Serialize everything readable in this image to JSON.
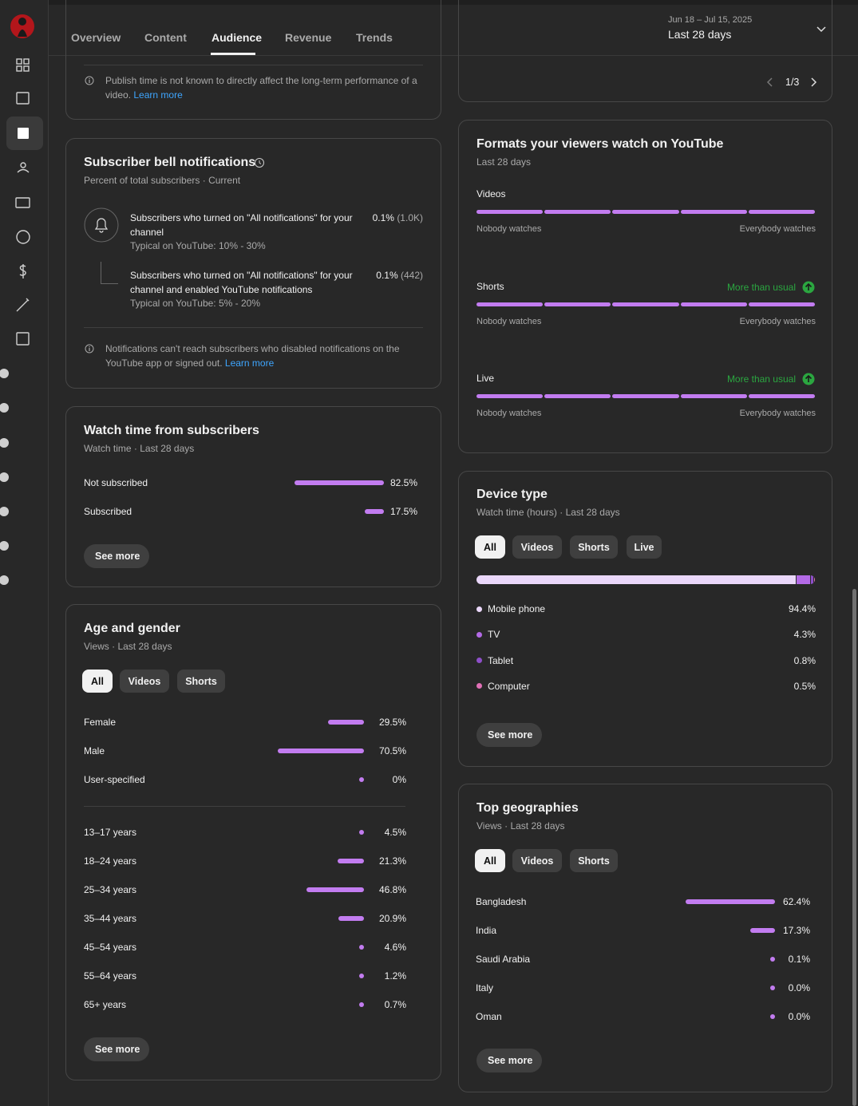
{
  "tabs": [
    "Overview",
    "Content",
    "Audience",
    "Revenue",
    "Trends"
  ],
  "date_range": {
    "dates": "Jun 18 – Jul 15, 2025",
    "period": "Last 28 days"
  },
  "bar_color": "#c27cf0",
  "publish_time_note": {
    "text": "Publish time is not known to directly affect the long-term performance of a video.",
    "link": "Learn more"
  },
  "pager": "1/3",
  "subscriber_bell": {
    "title": "Subscriber bell notifications",
    "subtitle": "Percent of total subscribers · Current",
    "rows": [
      {
        "label": "Subscribers who turned on \"All notifications\" for your channel",
        "value": "0.1%",
        "count": "(1.0K)",
        "typical": "Typical on YouTube: 10% - 30%"
      },
      {
        "label": "Subscribers who turned on \"All notifications\" for your channel and enabled YouTube notifications",
        "value": "0.1%",
        "count": "(442)",
        "typical": "Typical on YouTube: 5% - 20%"
      }
    ],
    "note": {
      "text": "Notifications can't reach subscribers who disabled notifications on the YouTube app or signed out.",
      "link": "Learn more"
    }
  },
  "watch_time_subscribers": {
    "title": "Watch time from subscribers",
    "subtitle": "Watch time · Last 28 days",
    "rows": [
      {
        "label": "Not subscribed",
        "value": 82.5,
        "value_label": "82.5%"
      },
      {
        "label": "Subscribed",
        "value": 17.5,
        "value_label": "17.5%"
      }
    ],
    "button": "See more"
  },
  "age_gender": {
    "title": "Age and gender",
    "subtitle": "Views · Last 28 days",
    "filters": [
      "All",
      "Videos",
      "Shorts"
    ],
    "gender": [
      {
        "label": "Female",
        "value": 29.5,
        "value_label": "29.5%"
      },
      {
        "label": "Male",
        "value": 70.5,
        "value_label": "70.5%"
      },
      {
        "label": "User-specified",
        "value": 0,
        "value_label": "0%"
      }
    ],
    "age": [
      {
        "label": "13–17 years",
        "value": 4.5,
        "value_label": "4.5%"
      },
      {
        "label": "18–24 years",
        "value": 21.3,
        "value_label": "21.3%"
      },
      {
        "label": "25–34 years",
        "value": 46.8,
        "value_label": "46.8%"
      },
      {
        "label": "35–44 years",
        "value": 20.9,
        "value_label": "20.9%"
      },
      {
        "label": "45–54 years",
        "value": 4.6,
        "value_label": "4.6%"
      },
      {
        "label": "55–64 years",
        "value": 1.2,
        "value_label": "1.2%"
      },
      {
        "label": "65+ years",
        "value": 0.7,
        "value_label": "0.7%"
      }
    ],
    "button": "See more"
  },
  "formats": {
    "title": "Formats your viewers watch on YouTube",
    "subtitle": "Last 28 days",
    "min_label": "Nobody watches",
    "max_label": "Everybody watches",
    "rows": [
      {
        "label": "Videos"
      },
      {
        "label": "Shorts",
        "badge": "More than usual"
      },
      {
        "label": "Live",
        "badge": "More than usual"
      }
    ]
  },
  "device_type": {
    "title": "Device type",
    "subtitle": "Watch time (hours) · Last 28 days",
    "filters": [
      "All",
      "Videos",
      "Shorts",
      "Live"
    ],
    "rows": [
      {
        "label": "Mobile phone",
        "value": 94.4,
        "value_label": "94.4%",
        "color": "#ead7fa"
      },
      {
        "label": "TV",
        "value": 4.3,
        "value_label": "4.3%",
        "color": "#b36ae6"
      },
      {
        "label": "Tablet",
        "value": 0.8,
        "value_label": "0.8%",
        "color": "#8e4fc9"
      },
      {
        "label": "Computer",
        "value": 0.5,
        "value_label": "0.5%",
        "color": "#e070b6"
      }
    ],
    "button": "See more"
  },
  "top_geographies": {
    "title": "Top geographies",
    "subtitle": "Views · Last 28 days",
    "filters": [
      "All",
      "Videos",
      "Shorts"
    ],
    "rows": [
      {
        "label": "Bangladesh",
        "value": 62.4,
        "value_label": "62.4%"
      },
      {
        "label": "India",
        "value": 17.3,
        "value_label": "17.3%"
      },
      {
        "label": "Saudi Arabia",
        "value": 0.1,
        "value_label": "0.1%"
      },
      {
        "label": "Italy",
        "value": 0.0,
        "value_label": "0.0%"
      },
      {
        "label": "Oman",
        "value": 0.0,
        "value_label": "0.0%"
      }
    ],
    "button": "See more"
  }
}
